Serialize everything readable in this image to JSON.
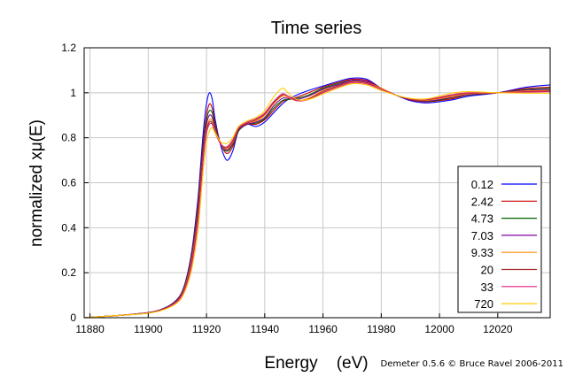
{
  "chart_data": {
    "type": "line",
    "title": "Time series",
    "xlabel": "Energy    (eV)",
    "ylabel": "normalized xμ(E)",
    "credit": "Demeter 0.5.6 © Bruce Ravel 2006-2011",
    "xlim": [
      11878,
      12038
    ],
    "ylim": [
      0,
      1.2
    ],
    "xticks": [
      "11880",
      "11900",
      "11920",
      "11940",
      "11960",
      "11980",
      "12000",
      "12020"
    ],
    "xtick_values": [
      11880,
      11900,
      11920,
      11940,
      11960,
      11980,
      12000,
      12020
    ],
    "yticks": [
      "0",
      "0.2",
      "0.4",
      "0.6",
      "0.8",
      "1",
      "1.2"
    ],
    "ytick_values": [
      0,
      0.2,
      0.4,
      0.6,
      0.8,
      1.0,
      1.2
    ],
    "grid": true,
    "legend_position": "right-middle",
    "x": [
      11878,
      11884,
      11890,
      11896,
      11900,
      11904,
      11908,
      11911,
      11913,
      11915,
      11917,
      11918,
      11919,
      11920,
      11921,
      11922,
      11923,
      11925,
      11927,
      11929,
      11931,
      11934,
      11937,
      11940,
      11943,
      11946,
      11948,
      11951,
      11955,
      11960,
      11965,
      11970,
      11975,
      11980,
      11985,
      11990,
      11995,
      12000,
      12005,
      12010,
      12020,
      12030,
      12038
    ],
    "series": [
      {
        "name": "0.12",
        "color": "#0000ff",
        "values": [
          0.0,
          0.005,
          0.01,
          0.017,
          0.023,
          0.035,
          0.06,
          0.1,
          0.17,
          0.3,
          0.52,
          0.68,
          0.84,
          0.95,
          1.0,
          0.97,
          0.88,
          0.76,
          0.7,
          0.74,
          0.83,
          0.86,
          0.85,
          0.87,
          0.91,
          0.95,
          0.97,
          0.99,
          1.01,
          1.03,
          1.05,
          1.065,
          1.06,
          1.02,
          0.99,
          0.965,
          0.955,
          0.96,
          0.97,
          0.985,
          1.0,
          1.025,
          1.035
        ]
      },
      {
        "name": "2.42",
        "color": "#cc0000",
        "values": [
          0.0,
          0.005,
          0.01,
          0.017,
          0.023,
          0.034,
          0.058,
          0.098,
          0.165,
          0.29,
          0.5,
          0.65,
          0.8,
          0.9,
          0.95,
          0.93,
          0.86,
          0.77,
          0.73,
          0.76,
          0.83,
          0.86,
          0.86,
          0.88,
          0.92,
          0.96,
          0.97,
          0.98,
          1.0,
          1.025,
          1.045,
          1.06,
          1.055,
          1.02,
          0.99,
          0.968,
          0.96,
          0.965,
          0.975,
          0.99,
          1.0,
          1.02,
          1.025
        ]
      },
      {
        "name": "4.73",
        "color": "#006400",
        "values": [
          0.0,
          0.005,
          0.01,
          0.017,
          0.022,
          0.033,
          0.056,
          0.095,
          0.16,
          0.28,
          0.48,
          0.63,
          0.78,
          0.88,
          0.92,
          0.91,
          0.85,
          0.77,
          0.74,
          0.77,
          0.83,
          0.86,
          0.865,
          0.885,
          0.93,
          0.965,
          0.97,
          0.975,
          0.99,
          1.02,
          1.04,
          1.055,
          1.05,
          1.02,
          0.99,
          0.97,
          0.962,
          0.968,
          0.98,
          0.99,
          1.0,
          1.015,
          1.02
        ]
      },
      {
        "name": "7.03",
        "color": "#8000a0",
        "values": [
          0.0,
          0.005,
          0.01,
          0.016,
          0.022,
          0.033,
          0.055,
          0.093,
          0.155,
          0.27,
          0.46,
          0.61,
          0.76,
          0.86,
          0.9,
          0.89,
          0.84,
          0.77,
          0.745,
          0.775,
          0.835,
          0.86,
          0.87,
          0.89,
          0.94,
          0.975,
          0.975,
          0.97,
          0.985,
          1.015,
          1.035,
          1.055,
          1.05,
          1.02,
          0.99,
          0.97,
          0.963,
          0.97,
          0.982,
          0.992,
          1.0,
          1.012,
          1.015
        ]
      },
      {
        "name": "9.33",
        "color": "#ff8c00",
        "values": [
          0.0,
          0.005,
          0.01,
          0.016,
          0.021,
          0.032,
          0.054,
          0.09,
          0.15,
          0.26,
          0.44,
          0.59,
          0.74,
          0.84,
          0.88,
          0.875,
          0.83,
          0.77,
          0.75,
          0.78,
          0.84,
          0.865,
          0.875,
          0.9,
          0.95,
          0.985,
          0.98,
          0.965,
          0.975,
          1.01,
          1.03,
          1.05,
          1.045,
          1.02,
          0.99,
          0.972,
          0.966,
          0.974,
          0.985,
          0.995,
          1.0,
          1.008,
          1.01
        ]
      },
      {
        "name": "20",
        "color": "#a52a2a",
        "values": [
          0.0,
          0.005,
          0.01,
          0.016,
          0.021,
          0.032,
          0.053,
          0.088,
          0.145,
          0.25,
          0.43,
          0.58,
          0.73,
          0.83,
          0.87,
          0.865,
          0.825,
          0.77,
          0.755,
          0.785,
          0.84,
          0.865,
          0.88,
          0.905,
          0.955,
          0.99,
          0.985,
          0.965,
          0.972,
          1.005,
          1.03,
          1.05,
          1.045,
          1.015,
          0.99,
          0.972,
          0.968,
          0.978,
          0.99,
          0.998,
          1.0,
          1.005,
          1.008
        ]
      },
      {
        "name": "33",
        "color": "#e0207a",
        "values": [
          0.0,
          0.005,
          0.01,
          0.016,
          0.021,
          0.031,
          0.052,
          0.086,
          0.14,
          0.24,
          0.42,
          0.57,
          0.72,
          0.82,
          0.86,
          0.86,
          0.82,
          0.77,
          0.76,
          0.79,
          0.845,
          0.87,
          0.885,
          0.91,
          0.96,
          0.995,
          0.985,
          0.965,
          0.97,
          1.0,
          1.025,
          1.045,
          1.04,
          1.015,
          0.99,
          0.973,
          0.97,
          0.98,
          0.993,
          1.0,
          1.0,
          1.003,
          1.005
        ]
      },
      {
        "name": "720",
        "color": "#ffcc00",
        "values": [
          0.0,
          0.005,
          0.01,
          0.015,
          0.02,
          0.03,
          0.05,
          0.08,
          0.13,
          0.22,
          0.38,
          0.52,
          0.67,
          0.78,
          0.83,
          0.845,
          0.82,
          0.78,
          0.775,
          0.8,
          0.85,
          0.875,
          0.89,
          0.92,
          0.98,
          1.02,
          1.0,
          0.97,
          0.97,
          0.995,
          1.02,
          1.04,
          1.035,
          1.01,
          0.99,
          0.975,
          0.972,
          0.985,
          1.0,
          1.005,
          1.0,
          0.998,
          0.998
        ]
      }
    ]
  }
}
